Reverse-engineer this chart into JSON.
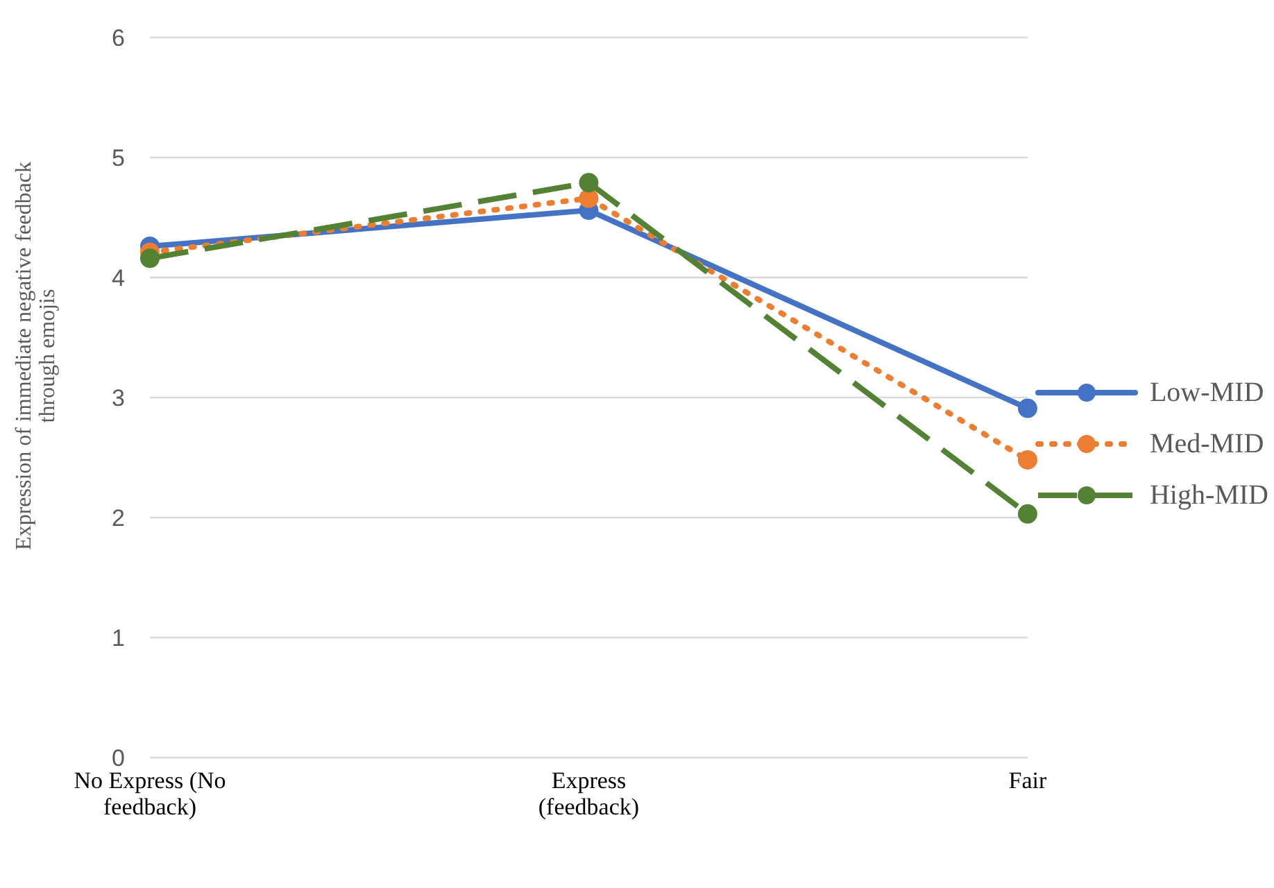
{
  "chart_data": {
    "type": "line",
    "ylabel": "Expression of immediate negative feedback through emojis",
    "categories": [
      "No Express (No feedback)",
      "Express (feedback)",
      "Fair"
    ],
    "series": [
      {
        "name": "Low-MID",
        "color": "#4472c4",
        "line_style": "solid",
        "values": [
          4.26,
          4.56,
          2.91
        ]
      },
      {
        "name": "Med-MID",
        "color": "#ed7d31",
        "line_style": "dotted",
        "values": [
          4.21,
          4.66,
          2.48
        ]
      },
      {
        "name": "High-MID",
        "color": "#548235",
        "line_style": "dashed",
        "values": [
          4.16,
          4.79,
          2.03
        ]
      }
    ],
    "ylim": [
      0,
      6
    ],
    "yticks": [
      0,
      1,
      2,
      3,
      4,
      5,
      6
    ],
    "grid": "y",
    "legend": "right",
    "marker": "circle"
  }
}
